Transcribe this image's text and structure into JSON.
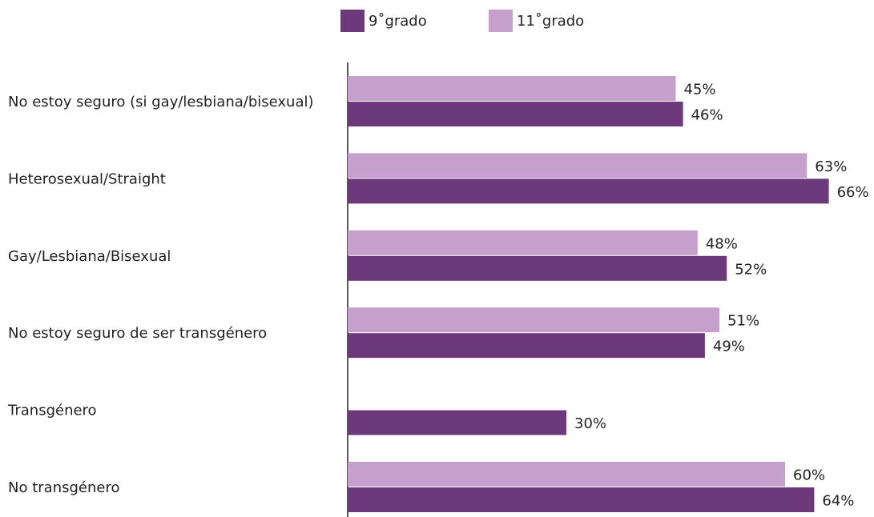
{
  "chart_data": {
    "type": "bar",
    "orientation": "horizontal",
    "categories": [
      "No estoy seguro (si gay/lesbiana/bisexual)",
      "Heterosexual/Straight",
      "Gay/Lesbiana/Bisexual",
      "No estoy seguro de ser transgénero",
      "Transgénero",
      "No transgénero"
    ],
    "series": [
      {
        "name": "11˚grado",
        "color": "#c6a0cc",
        "values": [
          45,
          63,
          48,
          51,
          null,
          60
        ],
        "value_labels": [
          "45%",
          "63%",
          "48%",
          "51%",
          null,
          "60%"
        ]
      },
      {
        "name": "9˚grado",
        "color": "#6c3a7a",
        "values": [
          46,
          66,
          52,
          49,
          30,
          64
        ],
        "value_labels": [
          "46%",
          "66%",
          "52%",
          "49%",
          "30%",
          "64%"
        ]
      }
    ],
    "xlim": [
      0,
      100
    ],
    "legend": "top"
  }
}
